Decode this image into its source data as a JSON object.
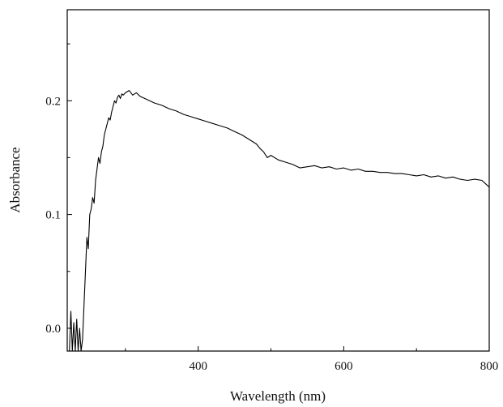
{
  "chart_data": {
    "type": "line",
    "title": "",
    "xlabel": "Wavelength (nm)",
    "ylabel": "Absorbance",
    "xlim": [
      220,
      800
    ],
    "ylim": [
      -0.02,
      0.28
    ],
    "xticks": [
      {
        "value": 400,
        "label": "400"
      },
      {
        "value": 600,
        "label": "600"
      },
      {
        "value": 800,
        "label": "800"
      }
    ],
    "x_minor_ticks": [
      300,
      500,
      700
    ],
    "yticks": [
      {
        "value": 0.0,
        "label": "0.0"
      },
      {
        "value": 0.1,
        "label": "0.1"
      },
      {
        "value": 0.2,
        "label": "0.2"
      }
    ],
    "y_minor_ticks": [
      0.05,
      0.15,
      0.25
    ],
    "grid": false,
    "legend": "none",
    "line_color": "#000000",
    "series": [
      {
        "x": [
          223,
          225,
          227,
          229,
          231,
          233,
          235,
          237,
          239,
          241,
          243,
          245,
          247,
          249,
          251,
          253,
          255,
          257,
          259,
          261,
          263,
          265,
          267,
          269,
          271,
          273,
          275,
          277,
          279,
          281,
          283,
          285,
          287,
          289,
          291,
          293,
          295,
          297,
          300,
          305,
          310,
          315,
          320,
          330,
          340,
          350,
          360,
          370,
          380,
          390,
          400,
          410,
          420,
          430,
          440,
          450,
          460,
          470,
          480,
          485,
          490,
          495,
          500,
          510,
          520,
          530,
          540,
          550,
          560,
          570,
          580,
          590,
          600,
          610,
          620,
          630,
          640,
          650,
          660,
          670,
          680,
          690,
          700,
          710,
          720,
          730,
          740,
          750,
          760,
          770,
          780,
          790,
          795,
          800
        ],
        "y": [
          -0.02,
          0.015,
          -0.02,
          0.005,
          -0.02,
          0.008,
          -0.02,
          0.0,
          -0.02,
          -0.01,
          0.02,
          0.05,
          0.08,
          0.07,
          0.1,
          0.105,
          0.115,
          0.11,
          0.13,
          0.14,
          0.15,
          0.145,
          0.155,
          0.16,
          0.17,
          0.175,
          0.18,
          0.185,
          0.183,
          0.19,
          0.195,
          0.2,
          0.198,
          0.203,
          0.205,
          0.202,
          0.206,
          0.205,
          0.207,
          0.209,
          0.205,
          0.207,
          0.204,
          0.201,
          0.198,
          0.196,
          0.193,
          0.191,
          0.188,
          0.186,
          0.184,
          0.182,
          0.18,
          0.178,
          0.176,
          0.173,
          0.17,
          0.166,
          0.162,
          0.158,
          0.155,
          0.15,
          0.152,
          0.148,
          0.146,
          0.144,
          0.141,
          0.142,
          0.143,
          0.141,
          0.142,
          0.14,
          0.141,
          0.139,
          0.14,
          0.138,
          0.138,
          0.137,
          0.137,
          0.136,
          0.136,
          0.135,
          0.134,
          0.135,
          0.133,
          0.134,
          0.132,
          0.133,
          0.131,
          0.13,
          0.131,
          0.13,
          0.127,
          0.124
        ]
      }
    ]
  }
}
